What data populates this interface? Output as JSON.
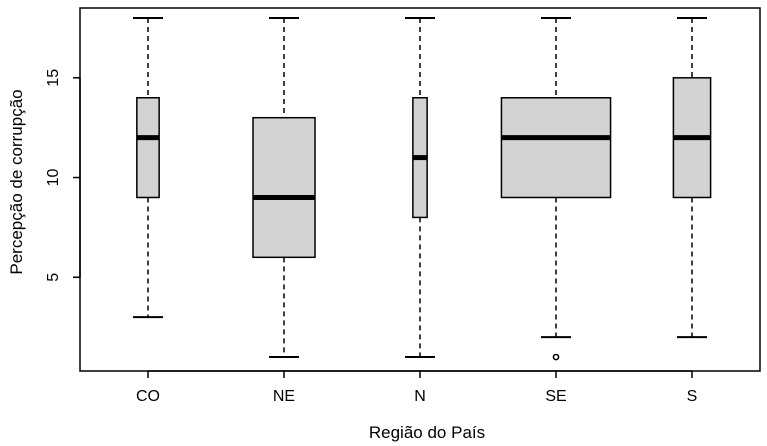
{
  "chart_data": {
    "type": "boxplot",
    "xlabel": "Região do País",
    "ylabel": "Percepção de corrupção",
    "categories": [
      "CO",
      "NE",
      "N",
      "SE",
      "S"
    ],
    "ylim": [
      0.3,
      18.5
    ],
    "yticks": [
      5,
      10,
      15
    ],
    "grid": false,
    "legend": "none",
    "box_fill": "#d3d3d3",
    "line_color": "#000000",
    "boxes": [
      {
        "category": "CO",
        "relative_width": 0.36,
        "whisker_low": 3,
        "q1": 9,
        "median": 12,
        "q3": 14,
        "whisker_high": 18,
        "outliers": []
      },
      {
        "category": "NE",
        "relative_width": 1.0,
        "whisker_low": 1,
        "q1": 6,
        "median": 9,
        "q3": 13,
        "whisker_high": 18,
        "outliers": []
      },
      {
        "category": "N",
        "relative_width": 0.23,
        "whisker_low": 1,
        "q1": 8,
        "median": 11,
        "q3": 14,
        "whisker_high": 18,
        "outliers": []
      },
      {
        "category": "SE",
        "relative_width": 1.76,
        "whisker_low": 2,
        "q1": 9,
        "median": 12,
        "q3": 14,
        "whisker_high": 18,
        "outliers": [
          1
        ]
      },
      {
        "category": "S",
        "relative_width": 0.6,
        "whisker_low": 2,
        "q1": 9,
        "median": 12,
        "q3": 15,
        "whisker_high": 18,
        "outliers": []
      }
    ]
  }
}
